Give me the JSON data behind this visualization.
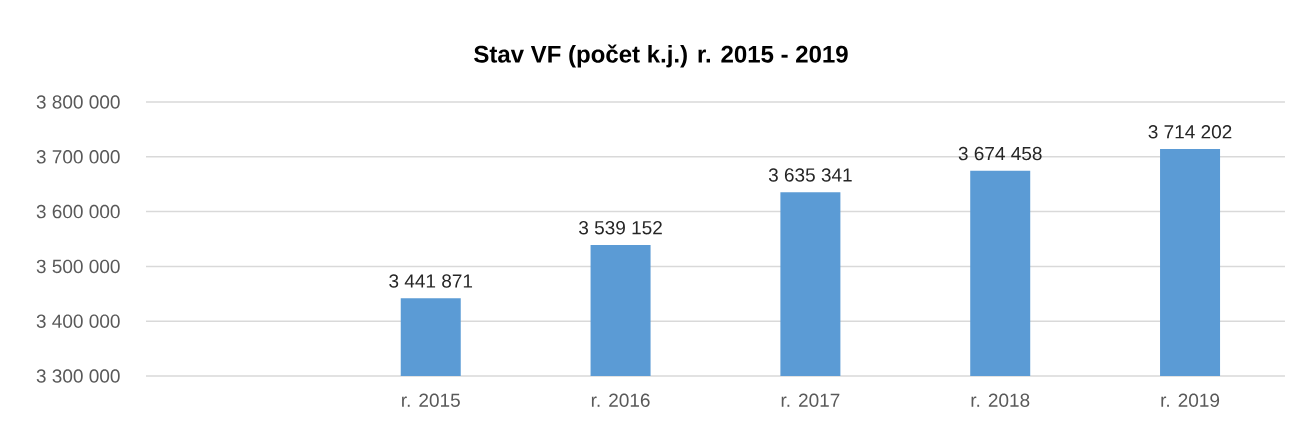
{
  "chart_data": {
    "type": "bar",
    "title": "Stav VF (počet k.j.) r. 2015 - 2019",
    "categories": [
      null,
      "r. 2015",
      "r. 2016",
      "r. 2017",
      "r. 2018",
      "r. 2019"
    ],
    "values": [
      null,
      3441871,
      3539152,
      3635341,
      3674458,
      3714202
    ],
    "value_labels": [
      null,
      "3 441 871",
      "3 539 152",
      "3 635 341",
      "3 674 458",
      "3 714 202"
    ],
    "color": "#5b9bd5",
    "ylim": [
      3300000,
      3800000
    ],
    "yticks": [
      {
        "value": 3300000,
        "label": "3 300 000"
      },
      {
        "value": 3400000,
        "label": "3 400 000"
      },
      {
        "value": 3500000,
        "label": "3 500 000"
      },
      {
        "value": 3600000,
        "label": "3 600 000"
      },
      {
        "value": 3700000,
        "label": "3 700 000"
      },
      {
        "value": 3800000,
        "label": "3 800 000"
      }
    ],
    "grid": "y"
  }
}
